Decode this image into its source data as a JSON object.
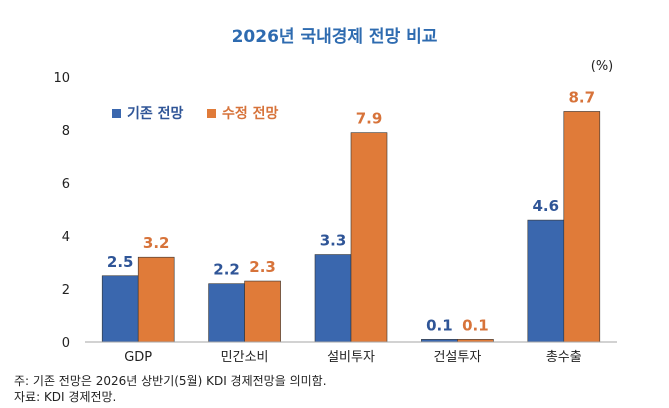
{
  "chart_data": {
    "type": "bar",
    "title": "2026년 국내경제 전망 비교",
    "unit_label": "(%)",
    "categories": [
      "GDP",
      "민간소비",
      "설비투자",
      "건설투자",
      "총수출"
    ],
    "series": [
      {
        "name": "기존 전망",
        "values": [
          2.5,
          2.2,
          3.3,
          0.1,
          4.6
        ],
        "labels": [
          "2.5",
          "2.2",
          "3.3",
          "0.1",
          "4.6"
        ],
        "color": "#3a67ae",
        "label_color": "#2f5597"
      },
      {
        "name": "수정 전망",
        "values": [
          3.2,
          2.3,
          7.9,
          0.1,
          8.7
        ],
        "labels": [
          "3.2",
          "2.3",
          "7.9",
          "0.1",
          "8.7"
        ],
        "color": "#e07b39",
        "label_color": "#d7733a"
      }
    ],
    "ylim": [
      0,
      10
    ],
    "yticks": [
      "0",
      "2",
      "4",
      "6",
      "8",
      "10"
    ],
    "grid": false,
    "legend_position": "top-left"
  },
  "notes": {
    "note": "주: 기존 전망은 2026년 상반기(5월) KDI 경제전망을 의미함.",
    "source": "자료: KDI 경제전망."
  }
}
